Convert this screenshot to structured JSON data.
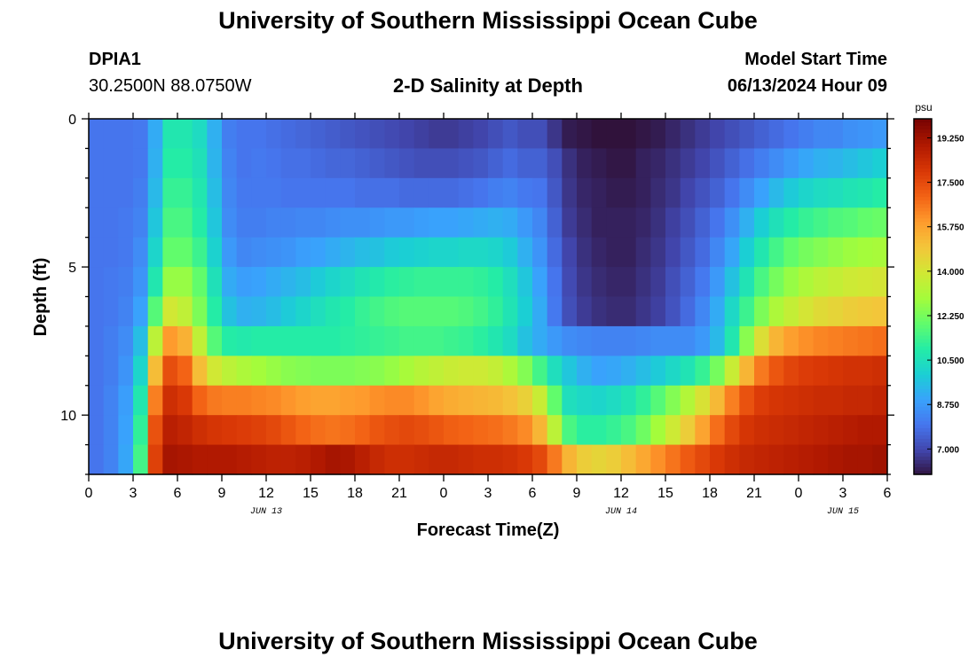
{
  "chart_data": {
    "type": "heatmap",
    "title": "University of Southern Mississippi Ocean Cube",
    "footer_title": "University of Southern Mississippi Ocean Cube",
    "station": "DPIA1",
    "location": "30.2500N  88.0750W",
    "subtitle": "2-D Salinity at Depth",
    "model_start_label": "Model Start Time",
    "model_start_value": "06/13/2024 Hour 09",
    "xlabel": "Forecast Time(Z)",
    "ylabel": "Depth (ft)",
    "x_ticks": [
      "0",
      "3",
      "6",
      "9",
      "12",
      "15",
      "18",
      "21",
      "0",
      "3",
      "6",
      "9",
      "12",
      "15",
      "18",
      "21",
      "0",
      "3",
      "6"
    ],
    "date_labels": [
      {
        "label": "JUN 13",
        "hour": 12
      },
      {
        "label": "JUN 14",
        "hour": 36
      },
      {
        "label": "JUN 15",
        "hour": 51
      }
    ],
    "xlim": [
      0,
      54
    ],
    "y_ticks": [
      0,
      5,
      10
    ],
    "ylim": [
      0,
      12
    ],
    "colorbar": {
      "unit": "psu",
      "ticks": [
        "19.250",
        "17.500",
        "15.750",
        "14.000",
        "12.250",
        "10.500",
        "8.750",
        "7.000"
      ],
      "range": [
        6.0,
        20.0
      ],
      "colors": [
        "#30123b",
        "#4145ab",
        "#4675ed",
        "#39a2fc",
        "#1bcfd4",
        "#24eca6",
        "#61fc6c",
        "#a4fc3b",
        "#d1e834",
        "#f3c63a",
        "#fe9b2d",
        "#f36315",
        "#d93806",
        "#b11901",
        "#7a0402"
      ]
    },
    "depth_rows": [
      "0.5",
      "1.5",
      "2.5",
      "3.5",
      "4.5",
      "5.5",
      "6.5",
      "7.5",
      "8.5",
      "9.5",
      "10.5",
      "11.5"
    ],
    "times": [
      0,
      1,
      2,
      3,
      4,
      5,
      6,
      7,
      8,
      9,
      10,
      11,
      12,
      13,
      14,
      15,
      16,
      17,
      18,
      19,
      20,
      21,
      22,
      23,
      24,
      25,
      26,
      27,
      28,
      29,
      30,
      31,
      32,
      33,
      34,
      35,
      36,
      37,
      38,
      39,
      40,
      41,
      42,
      43,
      44,
      45,
      46,
      47,
      48,
      49,
      50,
      51,
      52,
      53
    ],
    "salinity": [
      [
        8.0,
        8.0,
        8.0,
        8.1,
        9.2,
        10.8,
        10.8,
        10.4,
        9.3,
        8.2,
        8.0,
        8.0,
        7.9,
        7.8,
        7.7,
        7.6,
        7.5,
        7.4,
        7.3,
        7.2,
        7.1,
        7.0,
        6.9,
        6.8,
        6.8,
        6.9,
        7.0,
        7.2,
        7.4,
        7.2,
        7.2,
        6.7,
        6.2,
        6.1,
        6.0,
        6.0,
        6.0,
        6.1,
        6.2,
        6.4,
        6.6,
        6.8,
        7.0,
        7.2,
        7.4,
        7.6,
        7.8,
        8.0,
        8.2,
        8.4,
        8.4,
        8.6,
        8.7,
        8.8
      ],
      [
        8.0,
        8.0,
        8.0,
        8.1,
        9.3,
        11.0,
        11.0,
        10.6,
        9.4,
        8.3,
        8.0,
        8.1,
        8.0,
        7.9,
        7.9,
        7.8,
        7.7,
        7.7,
        7.6,
        7.5,
        7.4,
        7.3,
        7.2,
        7.2,
        7.2,
        7.3,
        7.4,
        7.6,
        7.8,
        7.6,
        7.6,
        7.2,
        6.6,
        6.3,
        6.2,
        6.1,
        6.1,
        6.3,
        6.4,
        6.6,
        6.8,
        7.0,
        7.3,
        7.6,
        7.9,
        8.2,
        8.5,
        8.8,
        9.1,
        9.3,
        9.4,
        9.6,
        9.8,
        10.0
      ],
      [
        8.0,
        8.0,
        8.0,
        8.2,
        9.5,
        11.3,
        11.3,
        10.8,
        9.6,
        8.4,
        8.1,
        8.1,
        8.1,
        8.0,
        8.0,
        8.0,
        8.0,
        8.0,
        7.9,
        7.9,
        7.9,
        7.8,
        7.8,
        7.8,
        7.8,
        7.9,
        8.0,
        8.2,
        8.3,
        8.1,
        8.0,
        7.4,
        6.7,
        6.4,
        6.3,
        6.2,
        6.2,
        6.3,
        6.5,
        6.7,
        7.0,
        7.3,
        7.6,
        8.0,
        8.5,
        9.0,
        9.5,
        9.9,
        10.2,
        10.4,
        10.5,
        10.7,
        10.8,
        11.0
      ],
      [
        8.0,
        8.0,
        8.1,
        8.3,
        9.8,
        11.6,
        11.6,
        11.0,
        9.8,
        8.5,
        8.2,
        8.2,
        8.3,
        8.3,
        8.4,
        8.4,
        8.5,
        8.6,
        8.6,
        8.7,
        8.8,
        8.8,
        8.9,
        9.0,
        9.0,
        9.1,
        9.2,
        9.3,
        9.2,
        8.8,
        8.4,
        7.6,
        6.8,
        6.5,
        6.3,
        6.3,
        6.3,
        6.4,
        6.6,
        6.9,
        7.2,
        7.6,
        8.0,
        8.6,
        9.3,
        10.0,
        10.6,
        11.0,
        11.3,
        11.5,
        11.7,
        11.8,
        12.0,
        12.1
      ],
      [
        8.0,
        8.0,
        8.1,
        8.5,
        10.2,
        12.0,
        12.0,
        11.4,
        10.1,
        8.8,
        8.4,
        8.5,
        8.6,
        8.7,
        8.9,
        9.0,
        9.2,
        9.4,
        9.6,
        9.7,
        9.9,
        10.0,
        10.1,
        10.2,
        10.2,
        10.3,
        10.3,
        10.2,
        9.9,
        9.3,
        8.7,
        7.8,
        7.0,
        6.6,
        6.4,
        6.3,
        6.3,
        6.5,
        6.7,
        7.0,
        7.4,
        7.8,
        8.4,
        9.1,
        10.0,
        10.8,
        11.5,
        12.0,
        12.3,
        12.5,
        12.7,
        12.9,
        13.0,
        13.1
      ],
      [
        8.0,
        8.1,
        8.2,
        8.7,
        10.8,
        12.8,
        12.8,
        12.0,
        10.6,
        9.2,
        8.9,
        9.0,
        9.2,
        9.4,
        9.6,
        9.9,
        10.2,
        10.4,
        10.7,
        10.9,
        11.1,
        11.2,
        11.3,
        11.3,
        11.3,
        11.3,
        11.2,
        11.0,
        10.5,
        9.8,
        9.0,
        8.0,
        7.1,
        6.7,
        6.5,
        6.4,
        6.4,
        6.6,
        6.8,
        7.2,
        7.6,
        8.1,
        8.8,
        9.7,
        10.7,
        11.6,
        12.3,
        12.8,
        13.2,
        13.5,
        13.7,
        13.9,
        14.0,
        14.1
      ],
      [
        8.0,
        8.1,
        8.3,
        9.0,
        11.8,
        14.0,
        13.6,
        12.4,
        11.0,
        9.7,
        9.3,
        9.4,
        9.6,
        9.9,
        10.2,
        10.5,
        10.8,
        11.0,
        11.3,
        11.5,
        11.7,
        11.8,
        11.8,
        11.8,
        11.8,
        11.7,
        11.5,
        11.2,
        10.7,
        10.0,
        9.2,
        8.1,
        7.2,
        6.8,
        6.6,
        6.5,
        6.5,
        6.7,
        6.9,
        7.3,
        7.8,
        8.4,
        9.2,
        10.3,
        11.4,
        12.4,
        13.2,
        13.7,
        14.1,
        14.4,
        14.6,
        14.8,
        14.9,
        15.0
      ],
      [
        8.0,
        8.2,
        8.5,
        9.6,
        13.5,
        16.0,
        15.5,
        13.6,
        11.8,
        11.0,
        10.9,
        11.0,
        11.0,
        11.0,
        11.0,
        11.0,
        11.0,
        11.1,
        11.2,
        11.3,
        11.4,
        11.5,
        11.5,
        11.5,
        11.4,
        11.3,
        11.1,
        10.8,
        10.4,
        9.7,
        9.2,
        8.8,
        8.5,
        8.4,
        8.3,
        8.3,
        8.3,
        8.4,
        8.5,
        8.5,
        8.5,
        8.8,
        9.5,
        10.8,
        12.6,
        14.3,
        15.4,
        15.9,
        16.2,
        16.4,
        16.5,
        16.6,
        16.7,
        16.8
      ],
      [
        8.0,
        8.2,
        8.7,
        10.2,
        15.2,
        17.5,
        17.0,
        15.2,
        14.0,
        13.5,
        13.2,
        13.0,
        12.8,
        12.6,
        12.5,
        12.4,
        12.4,
        12.4,
        12.5,
        12.6,
        12.8,
        13.1,
        13.4,
        13.6,
        13.8,
        13.9,
        13.9,
        13.7,
        13.2,
        12.5,
        11.5,
        10.5,
        9.8,
        9.3,
        9.0,
        9.1,
        9.3,
        9.6,
        9.9,
        10.3,
        10.7,
        11.3,
        12.3,
        13.8,
        15.4,
        16.6,
        17.3,
        17.7,
        17.9,
        18.0,
        18.1,
        18.2,
        18.2,
        18.3
      ],
      [
        8.0,
        8.3,
        8.9,
        10.8,
        16.5,
        18.3,
        18.0,
        17.0,
        16.6,
        16.5,
        16.5,
        16.4,
        16.3,
        16.1,
        15.9,
        15.8,
        15.8,
        15.9,
        16.0,
        16.2,
        16.3,
        16.3,
        16.1,
        15.8,
        15.6,
        15.5,
        15.4,
        15.3,
        15.1,
        14.7,
        13.8,
        12.0,
        10.5,
        10.3,
        10.2,
        10.4,
        10.7,
        11.2,
        11.8,
        12.5,
        13.3,
        14.2,
        15.3,
        16.5,
        17.4,
        17.9,
        18.1,
        18.2,
        18.3,
        18.4,
        18.4,
        18.5,
        18.5,
        18.6
      ],
      [
        8.0,
        8.3,
        9.0,
        11.2,
        17.4,
        18.8,
        18.6,
        18.3,
        18.1,
        18.0,
        17.9,
        17.8,
        17.6,
        17.3,
        17.0,
        16.8,
        16.7,
        16.8,
        17.0,
        17.3,
        17.5,
        17.6,
        17.5,
        17.3,
        17.1,
        17.0,
        16.9,
        16.8,
        16.6,
        16.3,
        15.4,
        13.5,
        11.6,
        11.1,
        11.1,
        11.3,
        11.6,
        12.2,
        13.0,
        13.9,
        14.8,
        15.8,
        16.8,
        17.6,
        18.1,
        18.3,
        18.4,
        18.5,
        18.6,
        18.7,
        18.8,
        18.9,
        19.0,
        19.0
      ],
      [
        8.0,
        8.3,
        9.1,
        11.5,
        17.8,
        19.2,
        19.1,
        19.0,
        19.0,
        19.0,
        18.9,
        18.8,
        18.7,
        18.7,
        18.8,
        19.0,
        19.2,
        19.1,
        18.8,
        18.5,
        18.3,
        18.3,
        18.4,
        18.5,
        18.5,
        18.4,
        18.3,
        18.3,
        18.2,
        18.0,
        17.6,
        16.6,
        15.4,
        14.8,
        14.6,
        14.8,
        15.2,
        15.7,
        16.2,
        16.7,
        17.2,
        17.6,
        18.0,
        18.3,
        18.5,
        18.6,
        18.7,
        18.8,
        18.9,
        19.0,
        19.1,
        19.2,
        19.2,
        19.3
      ]
    ]
  }
}
